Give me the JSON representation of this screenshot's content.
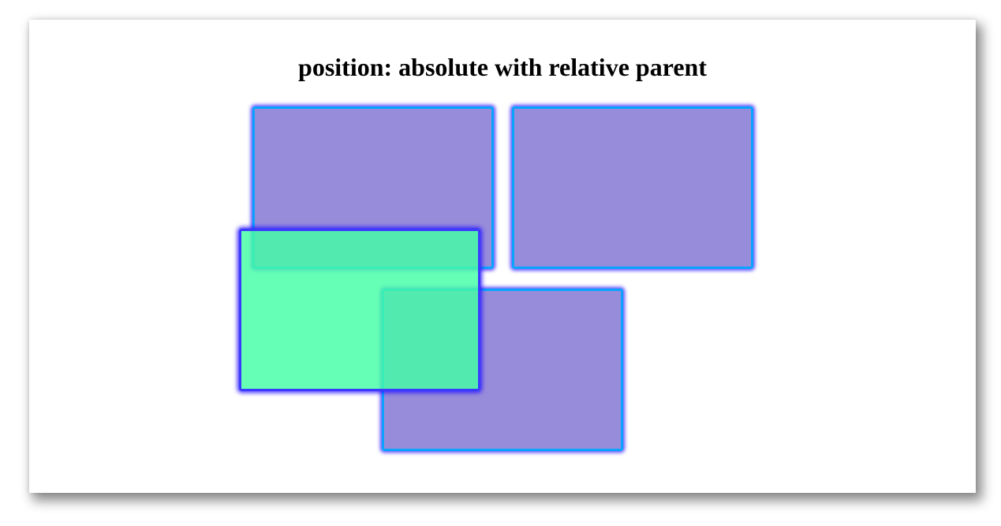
{
  "page": {
    "title": "position: absolute with relative parent"
  },
  "colors": {
    "box_fill": "#9593d9",
    "box_border": "#09a3ff",
    "absolute_box_fill": "#62ffb2",
    "absolute_box_border": "#3b3bff",
    "glow": "#3c28ff"
  }
}
